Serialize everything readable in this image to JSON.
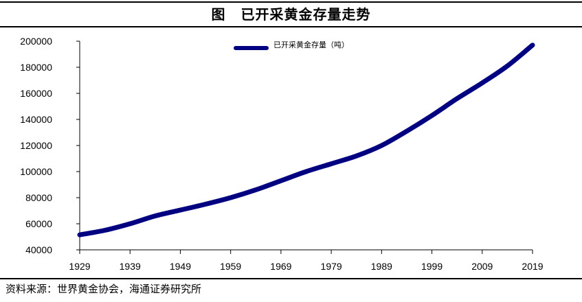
{
  "header": {
    "figure_label": "图",
    "title": "已开采黄金存量走势"
  },
  "footer": {
    "source": "资料来源：世界黄金协会，海通证券研究所"
  },
  "colors": {
    "series": "#000080",
    "axis": "#000000"
  },
  "chart_data": {
    "type": "line",
    "title": "已开采黄金存量走势",
    "xlabel": "",
    "ylabel": "",
    "ylim": [
      40000,
      200000
    ],
    "xlim": [
      1929,
      2019
    ],
    "grid": false,
    "legend_position": "top-center",
    "x_ticks": [
      "1929",
      "1939",
      "1949",
      "1959",
      "1969",
      "1979",
      "1989",
      "1999",
      "2009",
      "2019"
    ],
    "y_ticks": [
      "40000",
      "60000",
      "80000",
      "100000",
      "120000",
      "140000",
      "160000",
      "180000",
      "200000"
    ],
    "series": [
      {
        "name": "已开采黄金存量（吨）",
        "x": [
          1929,
          1934,
          1939,
          1944,
          1949,
          1954,
          1959,
          1964,
          1969,
          1974,
          1979,
          1984,
          1989,
          1994,
          1999,
          2004,
          2009,
          2014,
          2019
        ],
        "values": [
          51500,
          55000,
          60000,
          66000,
          70500,
          75000,
          80000,
          86000,
          93000,
          100000,
          106000,
          112000,
          120000,
          131000,
          143000,
          156000,
          168000,
          181000,
          197000
        ]
      }
    ]
  }
}
